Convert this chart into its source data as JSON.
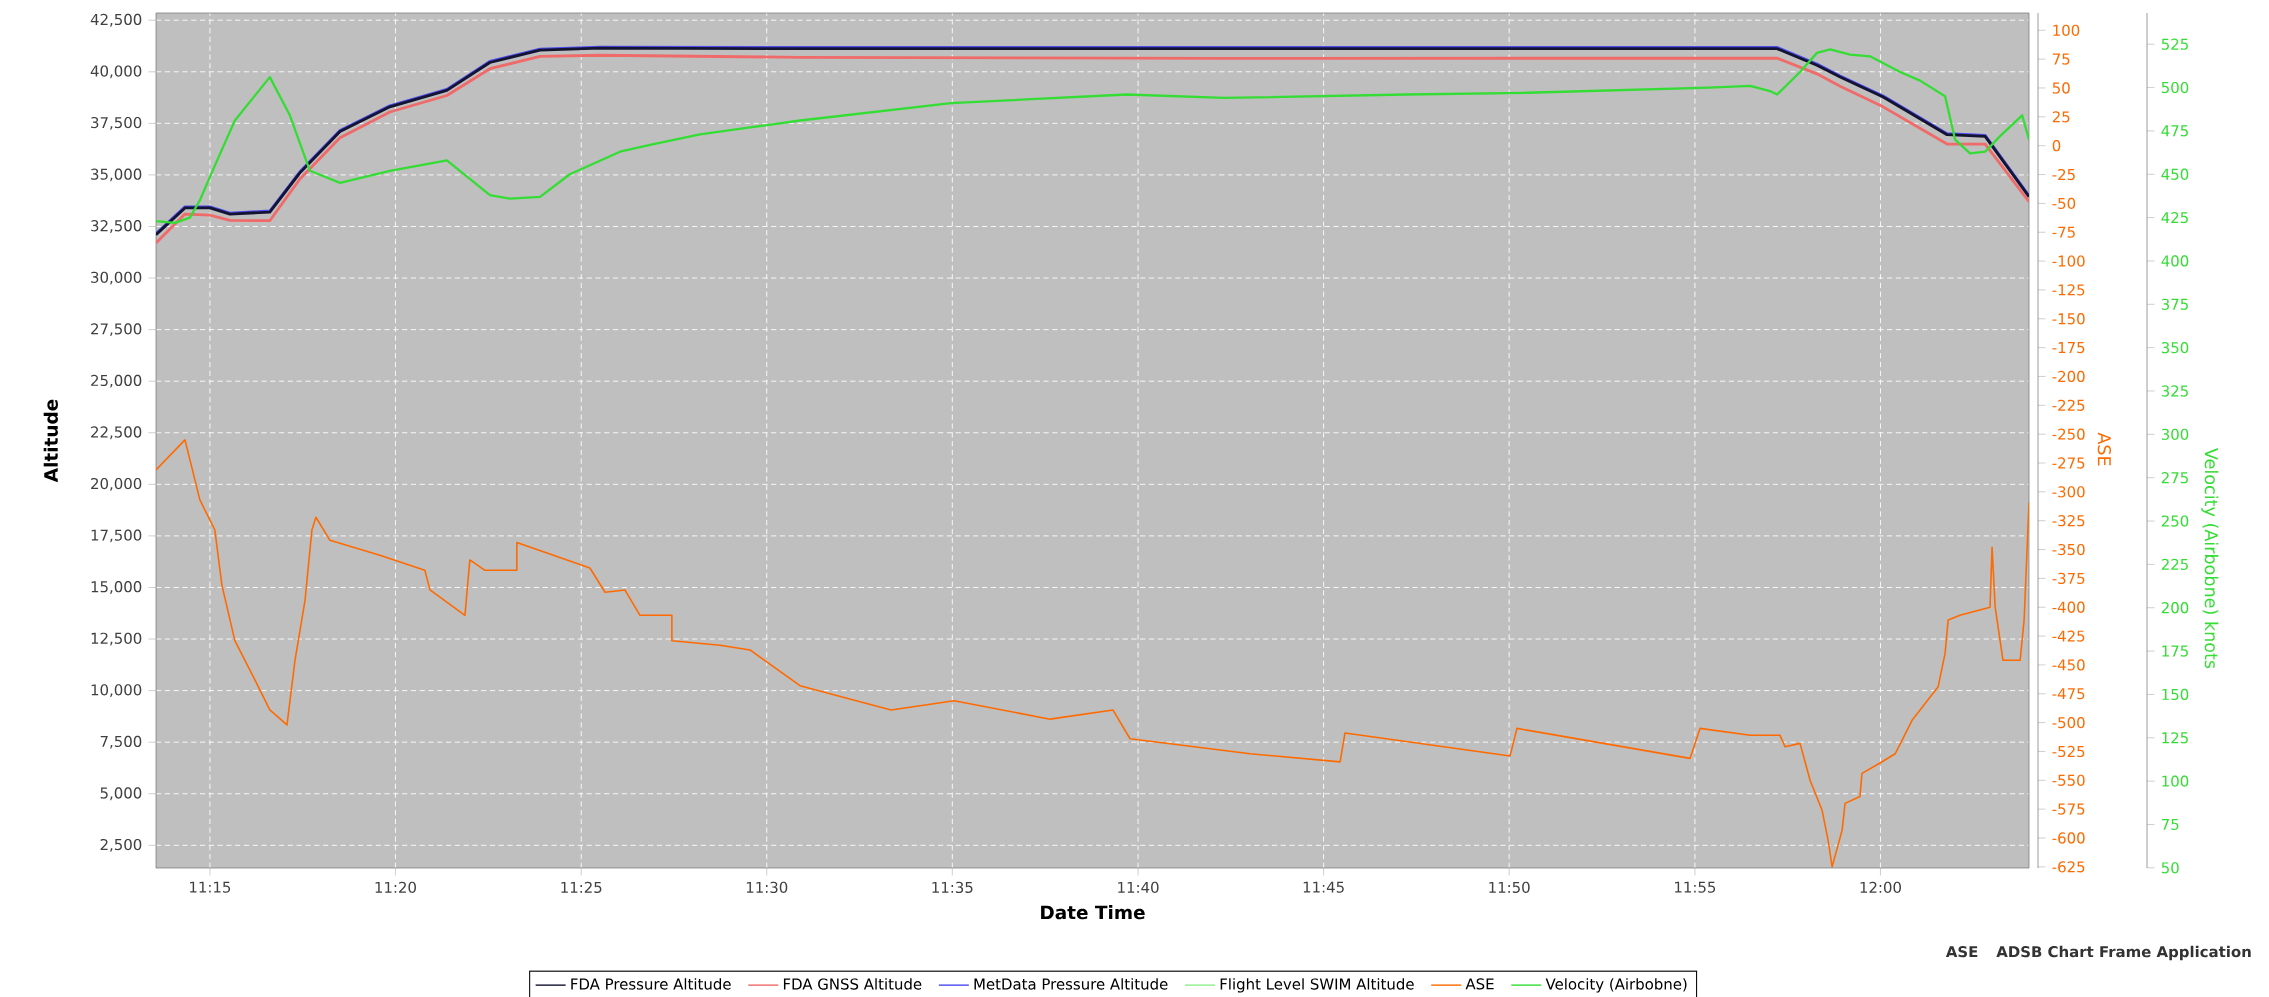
{
  "chart_data": {
    "type": "line",
    "xlabel": "Date Time",
    "ylabel": "Altitude",
    "y2label": "ASE",
    "y3label": "Velocity (Airbobne) knots",
    "xlim": [
      11.2258,
      12.0667
    ],
    "xticks": [
      {
        "value": 11.25,
        "label": "11:15"
      },
      {
        "value": 11.3333,
        "label": "11:20"
      },
      {
        "value": 11.4167,
        "label": "11:25"
      },
      {
        "value": 11.5,
        "label": "11:30"
      },
      {
        "value": 11.5833,
        "label": "11:35"
      },
      {
        "value": 11.6667,
        "label": "11:40"
      },
      {
        "value": 11.75,
        "label": "11:45"
      },
      {
        "value": 11.8333,
        "label": "11:50"
      },
      {
        "value": 11.9167,
        "label": "11:55"
      },
      {
        "value": 12.0,
        "label": "12:00"
      }
    ],
    "ylim": [
      1400,
      42850
    ],
    "yticks": [
      {
        "value": 2500,
        "label": "2,500"
      },
      {
        "value": 5000,
        "label": "5,000"
      },
      {
        "value": 7500,
        "label": "7,500"
      },
      {
        "value": 10000,
        "label": "10,000"
      },
      {
        "value": 12500,
        "label": "12,500"
      },
      {
        "value": 15000,
        "label": "15,000"
      },
      {
        "value": 17500,
        "label": "17,500"
      },
      {
        "value": 20000,
        "label": "20,000"
      },
      {
        "value": 22500,
        "label": "22,500"
      },
      {
        "value": 25000,
        "label": "25,000"
      },
      {
        "value": 27500,
        "label": "27,500"
      },
      {
        "value": 30000,
        "label": "30,000"
      },
      {
        "value": 32500,
        "label": "32,500"
      },
      {
        "value": 35000,
        "label": "35,000"
      },
      {
        "value": 37500,
        "label": "37,500"
      },
      {
        "value": 40000,
        "label": "40,000"
      },
      {
        "value": 42500,
        "label": "42,500"
      }
    ],
    "y2lim": [
      -626,
      115
    ],
    "y2ticks": [
      -625,
      -600,
      -575,
      -550,
      -525,
      -500,
      -475,
      -450,
      -425,
      -400,
      -375,
      -350,
      -325,
      -300,
      -275,
      -250,
      -225,
      -200,
      -175,
      -150,
      -125,
      -100,
      -75,
      -50,
      -25,
      0,
      25,
      50,
      75,
      100
    ],
    "y3lim": [
      49.9,
      543
    ],
    "y3ticks": [
      50,
      75,
      100,
      125,
      150,
      175,
      200,
      225,
      250,
      275,
      300,
      325,
      350,
      375,
      400,
      425,
      450,
      475,
      500,
      525
    ],
    "grid": true,
    "legend": "bottom",
    "marker": "none",
    "annotations": [
      "ASE",
      "ADSB Chart Frame Application"
    ],
    "series": [
      {
        "name": "FDA Pressure Altitude",
        "color": "#141432",
        "axis": "y",
        "x": [
          11.2258,
          11.2388,
          11.25,
          11.259,
          11.2769,
          11.2904,
          11.3084,
          11.3308,
          11.3564,
          11.3757,
          11.3982,
          11.4251,
          11.5149,
          11.7053,
          11.9536,
          11.9715,
          11.9819,
          12.0012,
          12.0299,
          12.047,
          12.0667
        ],
        "values": [
          32100,
          33400,
          33400,
          33100,
          33200,
          35100,
          37100,
          38300,
          39100,
          40450,
          41050,
          41150,
          41120,
          41120,
          41120,
          40320,
          39750,
          38780,
          36950,
          36870,
          33940
        ]
      },
      {
        "name": "FDA GNSS Altitude",
        "color": "#f06a6a",
        "axis": "y",
        "x": [
          11.2258,
          11.2388,
          11.25,
          11.259,
          11.2769,
          11.2904,
          11.3084,
          11.3308,
          11.3564,
          11.3757,
          11.3982,
          11.4251,
          11.5149,
          11.7053,
          11.9536,
          11.9715,
          11.9819,
          12.0012,
          12.0299,
          12.047,
          12.0667
        ],
        "values": [
          31700,
          33100,
          33050,
          32800,
          32780,
          34800,
          36800,
          38050,
          38850,
          40150,
          40750,
          40800,
          40700,
          40650,
          40660,
          39900,
          39300,
          38300,
          36500,
          36490,
          33700
        ]
      },
      {
        "name": "MetData Pressure Altitude",
        "color": "#4b4bf0",
        "axis": "y",
        "x": [
          11.2258,
          11.2388,
          11.25,
          11.259,
          11.2769,
          11.2904,
          11.3084,
          11.3308,
          11.3564,
          11.3757,
          11.3982,
          11.4251,
          11.5149,
          11.7053,
          11.9536,
          11.9715,
          11.9819,
          12.0012,
          12.0299,
          12.047,
          12.0667
        ],
        "values": [
          32150,
          33450,
          33450,
          33150,
          33250,
          35150,
          37150,
          38350,
          39150,
          40500,
          41100,
          41200,
          41180,
          41180,
          41180,
          40380,
          39800,
          38830,
          37000,
          36920,
          33990
        ]
      },
      {
        "name": "Flight Level SWIM Altitude",
        "color": "#90ee90",
        "axis": "y"
      },
      {
        "name": "ASE",
        "color": "#ff6a00",
        "axis": "y2",
        "x": [
          11.2258,
          11.2388,
          11.2455,
          11.2522,
          11.2554,
          11.2612,
          11.2702,
          11.2769,
          11.2846,
          11.2882,
          11.2927,
          11.2958,
          11.2976,
          11.3039,
          11.3263,
          11.3465,
          11.3488,
          11.3645,
          11.3667,
          11.3735,
          11.3878,
          11.3878,
          11.4206,
          11.4274,
          11.4363,
          11.4431,
          11.4574,
          11.4574,
          11.479,
          11.4925,
          11.5149,
          11.5558,
          11.5841,
          11.6272,
          11.6554,
          11.6631,
          11.717,
          11.7574,
          11.7596,
          11.8337,
          11.8368,
          11.9145,
          11.919,
          11.9415,
          11.9549,
          11.9572,
          11.9639,
          11.9684,
          11.9738,
          11.9765,
          11.9783,
          11.9828,
          11.9841,
          11.9908,
          11.9917,
          11.9998,
          12.0066,
          12.0142,
          12.0259,
          12.029,
          12.0304,
          12.0357,
          12.0492,
          12.0501,
          12.0515,
          12.055,
          12.0627,
          12.0645,
          12.0667
        ],
        "values": [
          -281,
          -255,
          -307,
          -333,
          -381,
          -429,
          -463,
          -489,
          -502,
          -446,
          -394,
          -333,
          -322,
          -342,
          -355,
          -368,
          -385,
          -407,
          -359,
          -368,
          -368,
          -344,
          -366,
          -387,
          -385,
          -407,
          -407,
          -429,
          -433,
          -437,
          -468,
          -489,
          -481,
          -497,
          -489,
          -514,
          -527,
          -534,
          -509,
          -529,
          -505,
          -531,
          -505,
          -511,
          -511,
          -521,
          -518,
          -550,
          -576,
          -602,
          -625,
          -593,
          -570,
          -564,
          -544,
          -535,
          -527,
          -498,
          -469,
          -440,
          -411,
          -407,
          -400,
          -348,
          -400,
          -446,
          -446,
          -411,
          -309
        ]
      },
      {
        "name": "Velocity (Airbobne)",
        "color": "#33dd33",
        "axis": "y3",
        "x": [
          11.2258,
          11.2343,
          11.241,
          11.2455,
          11.2522,
          11.2612,
          11.2769,
          11.2859,
          11.2949,
          11.3084,
          11.3308,
          11.3564,
          11.3757,
          11.3847,
          11.3982,
          11.4116,
          11.4341,
          11.4476,
          11.47,
          11.4925,
          11.5149,
          11.5827,
          11.6617,
          11.7053,
          11.787,
          11.8413,
          11.9231,
          11.9415,
          11.9504,
          11.9536,
          11.9639,
          11.9715,
          11.9774,
          11.9864,
          11.9953,
          12.0088,
          12.0178,
          12.029,
          12.0335,
          12.0402,
          12.047,
          12.0537,
          12.0636,
          12.0667
        ],
        "values": [
          423,
          422,
          425,
          435,
          455,
          481,
          506,
          484,
          452,
          445,
          452,
          458,
          438,
          436,
          437,
          450,
          463,
          467,
          473,
          477,
          481,
          491,
          496,
          494,
          496,
          497,
          500,
          501,
          498,
          496,
          509,
          520,
          522,
          519,
          518,
          509,
          504,
          495,
          470,
          462,
          463,
          472,
          484,
          470
        ]
      }
    ]
  }
}
